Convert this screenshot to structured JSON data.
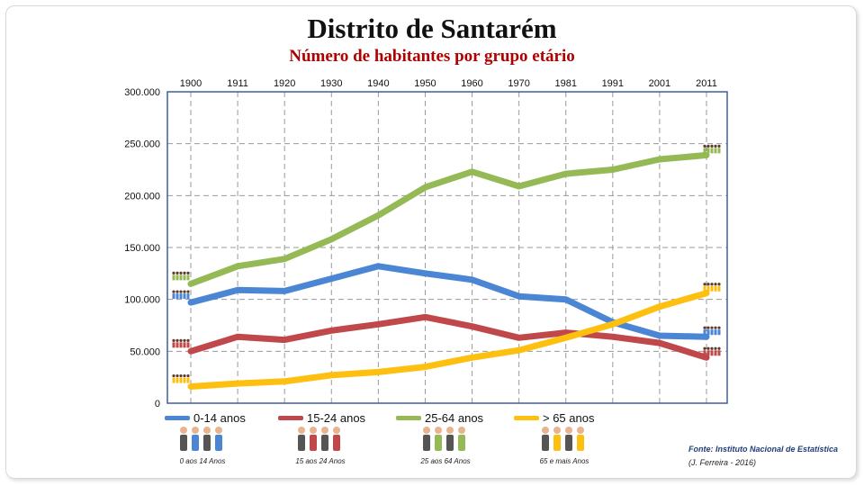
{
  "title": "Distrito de Santarém",
  "subtitle": "Número de habitantes por grupo etário",
  "source": "Fonte: Instituto Nacional de Estatística",
  "author": "(J. Ferreira - 2016)",
  "pictogram_captions": [
    "0 aos 14 Anos",
    "15 aos 24 Anos",
    "25 aos 64 Anos",
    "65 e mais Anos"
  ],
  "chart_data": {
    "type": "line",
    "title": "Distrito de Santarém",
    "subtitle": "Número de habitantes por grupo etário",
    "x": [
      "1900",
      "1911",
      "1920",
      "1930",
      "1940",
      "1950",
      "1960",
      "1970",
      "1981",
      "1991",
      "2001",
      "2011"
    ],
    "y_ticks": [
      "0",
      "50.000",
      "100.000",
      "150.000",
      "200.000",
      "250.000",
      "300.000"
    ],
    "ylim": [
      0,
      300000
    ],
    "grid": true,
    "legend_position": "bottom",
    "series": [
      {
        "name": "0-14 anos",
        "color": "#4a86d4",
        "values": [
          97000,
          109000,
          108000,
          120000,
          132000,
          125000,
          119000,
          103000,
          100000,
          78000,
          65000,
          64000
        ]
      },
      {
        "name": "15-24 anos",
        "color": "#c0474a",
        "values": [
          50000,
          64000,
          61000,
          70000,
          76000,
          83000,
          74000,
          63000,
          68000,
          64000,
          58000,
          44000
        ]
      },
      {
        "name": "25-64 anos",
        "color": "#94b955",
        "values": [
          115000,
          132000,
          139000,
          158000,
          181000,
          208000,
          223000,
          209000,
          221000,
          225000,
          235000,
          239000
        ]
      },
      {
        "name": "> 65 anos",
        "color": "#fdc010",
        "values": [
          16000,
          19000,
          21000,
          27000,
          30000,
          35000,
          44000,
          51000,
          63000,
          76000,
          93000,
          106000
        ]
      }
    ]
  }
}
